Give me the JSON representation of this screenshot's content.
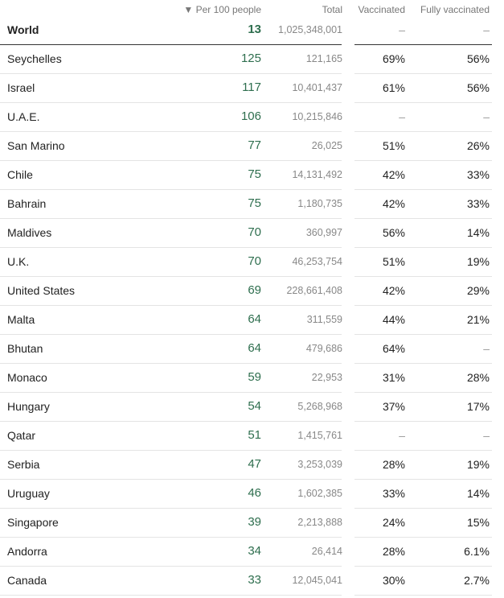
{
  "header": {
    "per100": "▼ Per 100 people",
    "total": "Total",
    "vaccinated": "Vaccinated",
    "fully": "Fully vaccinated"
  },
  "world": {
    "country": "World",
    "per100": 13,
    "total": "1,025,348,001",
    "vaccinated": "–",
    "fully": "–"
  },
  "rows": [
    {
      "country": "Seychelles",
      "per100": 125,
      "total": "121,165",
      "vaccinated": "69%",
      "fully": "56%"
    },
    {
      "country": "Israel",
      "per100": 117,
      "total": "10,401,437",
      "vaccinated": "61%",
      "fully": "56%"
    },
    {
      "country": "U.A.E.",
      "per100": 106,
      "total": "10,215,846",
      "vaccinated": "–",
      "fully": "–"
    },
    {
      "country": "San Marino",
      "per100": 77,
      "total": "26,025",
      "vaccinated": "51%",
      "fully": "26%"
    },
    {
      "country": "Chile",
      "per100": 75,
      "total": "14,131,492",
      "vaccinated": "42%",
      "fully": "33%"
    },
    {
      "country": "Bahrain",
      "per100": 75,
      "total": "1,180,735",
      "vaccinated": "42%",
      "fully": "33%"
    },
    {
      "country": "Maldives",
      "per100": 70,
      "total": "360,997",
      "vaccinated": "56%",
      "fully": "14%"
    },
    {
      "country": "U.K.",
      "per100": 70,
      "total": "46,253,754",
      "vaccinated": "51%",
      "fully": "19%"
    },
    {
      "country": "United States",
      "per100": 69,
      "total": "228,661,408",
      "vaccinated": "42%",
      "fully": "29%"
    },
    {
      "country": "Malta",
      "per100": 64,
      "total": "311,559",
      "vaccinated": "44%",
      "fully": "21%"
    },
    {
      "country": "Bhutan",
      "per100": 64,
      "total": "479,686",
      "vaccinated": "64%",
      "fully": "–"
    },
    {
      "country": "Monaco",
      "per100": 59,
      "total": "22,953",
      "vaccinated": "31%",
      "fully": "28%"
    },
    {
      "country": "Hungary",
      "per100": 54,
      "total": "5,268,968",
      "vaccinated": "37%",
      "fully": "17%"
    },
    {
      "country": "Qatar",
      "per100": 51,
      "total": "1,415,761",
      "vaccinated": "–",
      "fully": "–"
    },
    {
      "country": "Serbia",
      "per100": 47,
      "total": "3,253,039",
      "vaccinated": "28%",
      "fully": "19%"
    },
    {
      "country": "Uruguay",
      "per100": 46,
      "total": "1,602,385",
      "vaccinated": "33%",
      "fully": "14%"
    },
    {
      "country": "Singapore",
      "per100": 39,
      "total": "2,213,888",
      "vaccinated": "24%",
      "fully": "15%"
    },
    {
      "country": "Andorra",
      "per100": 34,
      "total": "26,414",
      "vaccinated": "28%",
      "fully": "6.1%"
    },
    {
      "country": "Canada",
      "per100": 33,
      "total": "12,045,041",
      "vaccinated": "30%",
      "fully": "2.7%"
    }
  ]
}
